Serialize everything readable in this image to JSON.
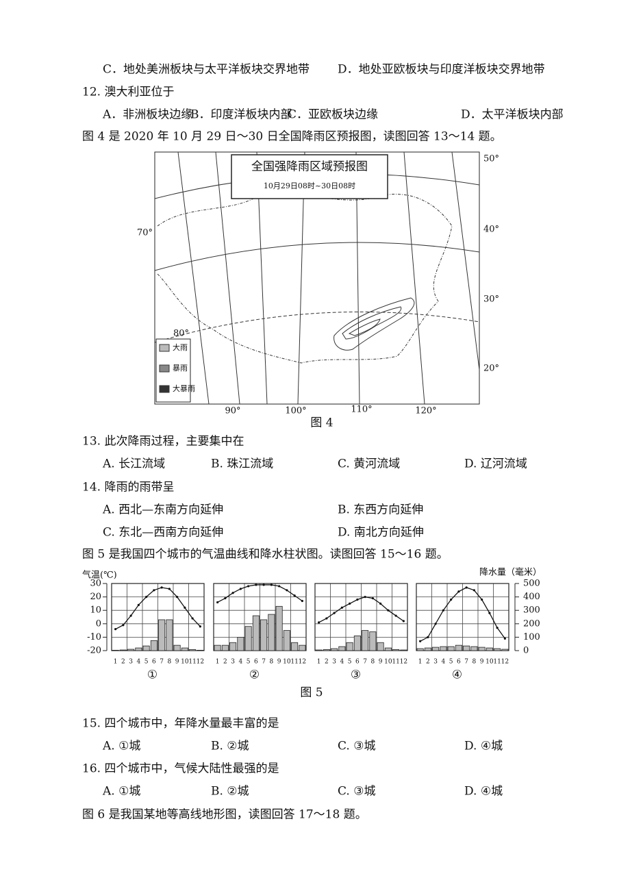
{
  "q11": {
    "options": [
      "C．地处美洲板块与太平洋板块交界地带",
      "D．地处亚欧板块与印度洋板块交界地带"
    ]
  },
  "q12": {
    "stem": "12. 澳大利亚位于",
    "options": [
      "A．非洲板块边缘",
      "B．印度洋板块内部",
      "C．亚欧板块边缘",
      "D．太平洋板块内部"
    ]
  },
  "intro4": "图 4 是 2020 年 10 月 29 日～30 日全国降雨区预报图，读图回答 13～14 题。",
  "figure4": {
    "title": "全国强降雨区域预报图",
    "subtitle": "10月29日08时~30日08时",
    "legend": [
      "大雨",
      "暴雨",
      "大暴雨"
    ],
    "lat_labels": [
      "50°",
      "40°",
      "30°",
      "20°"
    ],
    "left_labels": [
      "70°",
      "80°"
    ],
    "lon_labels": [
      "90°",
      "100°",
      "110°",
      "120°"
    ],
    "caption": "图 4"
  },
  "q13": {
    "stem": "13. 此次降雨过程，主要集中在",
    "options": [
      "A. 长江流域",
      "B. 珠江流域",
      "C. 黄河流域",
      "D. 辽河流域"
    ]
  },
  "q14": {
    "stem": "14. 降雨的雨带呈",
    "options": [
      "A. 西北—东南方向延伸",
      "B. 东西方向延伸",
      "C. 东北—西南方向延伸",
      "D. 南北方向延伸"
    ]
  },
  "intro5": "图 5 是我国四个城市的气温曲线和降水柱状图。读图回答 15～16 题。",
  "figure5": {
    "temperature_axis_label": "气温(℃)",
    "precipitation_axis_label": "降水量（毫米）",
    "temperature_lim": [
      -20,
      30
    ],
    "temperature_ticks": [
      30,
      20,
      10,
      0,
      -10,
      -20
    ],
    "precipitation_lim": [
      0,
      500
    ],
    "precipitation_ticks": [
      500,
      400,
      300,
      200,
      100,
      0
    ],
    "months": [
      1,
      2,
      3,
      4,
      5,
      6,
      7,
      8,
      9,
      10,
      11,
      12
    ],
    "charts": [
      {
        "label": "①",
        "temperature": [
          -4,
          -1,
          6,
          14,
          20,
          25,
          27,
          26,
          20,
          12,
          4,
          -2
        ],
        "precipitation": [
          3,
          5,
          10,
          20,
          35,
          75,
          230,
          230,
          40,
          20,
          8,
          3
        ]
      },
      {
        "label": "②",
        "temperature": [
          16,
          19,
          23,
          26,
          28,
          29,
          29,
          29,
          28,
          25,
          21,
          17
        ],
        "precipitation": [
          40,
          40,
          60,
          100,
          180,
          260,
          230,
          270,
          330,
          150,
          60,
          40
        ]
      },
      {
        "label": "③",
        "temperature": [
          1,
          4,
          8,
          12,
          15,
          18,
          20,
          19,
          15,
          10,
          6,
          2
        ],
        "precipitation": [
          5,
          8,
          15,
          30,
          60,
          110,
          150,
          140,
          60,
          20,
          8,
          5
        ]
      },
      {
        "label": "④",
        "temperature": [
          -13,
          -10,
          0,
          10,
          18,
          24,
          27,
          25,
          18,
          8,
          -3,
          -11
        ],
        "precipitation": [
          15,
          20,
          25,
          30,
          30,
          40,
          35,
          30,
          25,
          20,
          15,
          10
        ]
      }
    ],
    "caption": "图 5"
  },
  "q15": {
    "stem": "15. 四个城市中，年降水量最丰富的是",
    "options": [
      "A. ①城",
      "B. ②城",
      "C. ③城",
      "D. ④城"
    ]
  },
  "q16": {
    "stem": "16. 四个城市中，气候大陆性最强的是",
    "options": [
      "A. ①城",
      "B. ②城",
      "C. ③城",
      "D. ④城"
    ]
  },
  "intro6": "图 6 是我国某地等高线地形图，读图回答 17～18 题。"
}
